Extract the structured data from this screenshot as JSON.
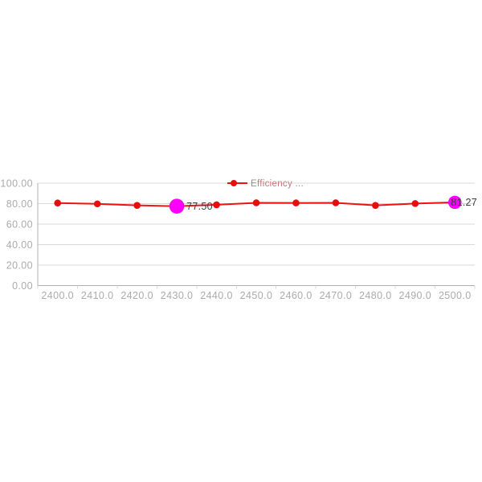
{
  "chart_data": {
    "type": "line",
    "title": "",
    "xlabel": "",
    "ylabel": "",
    "grid": true,
    "legend": {
      "label": "Efficiency ...",
      "position": "top-center"
    },
    "categories": [
      "2400.0",
      "2410.0",
      "2420.0",
      "2430.0",
      "2440.0",
      "2450.0",
      "2460.0",
      "2470.0",
      "2480.0",
      "2490.0",
      "2500.0"
    ],
    "series": [
      {
        "name": "Efficiency ...",
        "values": [
          80.6,
          79.8,
          78.3,
          77.5,
          78.9,
          80.8,
          80.7,
          80.8,
          78.3,
          80.1,
          81.27
        ]
      }
    ],
    "ylim": [
      0,
      100
    ],
    "y_ticks": [
      {
        "value": 100,
        "label": "100.00"
      },
      {
        "value": 80,
        "label": "80.00"
      },
      {
        "value": 60,
        "label": "60.00"
      },
      {
        "value": 40,
        "label": "40.00"
      },
      {
        "value": 20,
        "label": "20.00"
      },
      {
        "value": 0,
        "label": "0.00"
      }
    ],
    "annotations": [
      {
        "index": 3,
        "category": "2430.0",
        "value": 77.5,
        "label": "77.50",
        "marker": "highlight",
        "marker_radius": 9.3,
        "label_dx": 12
      },
      {
        "index": 10,
        "category": "2500.0",
        "value": 81.27,
        "label": "81.27",
        "marker": "highlight",
        "marker_radius": 8.3,
        "label_dx": -5
      }
    ],
    "colors": {
      "line": "#f01212",
      "marker": "#e60d0d",
      "highlight": "#fb00fb",
      "grid": "#d9d9d9",
      "axis": "#b0b0b0",
      "tick_text": "#ababab",
      "data_label": "#3c3c3c",
      "legend_text": "#c27878"
    }
  }
}
